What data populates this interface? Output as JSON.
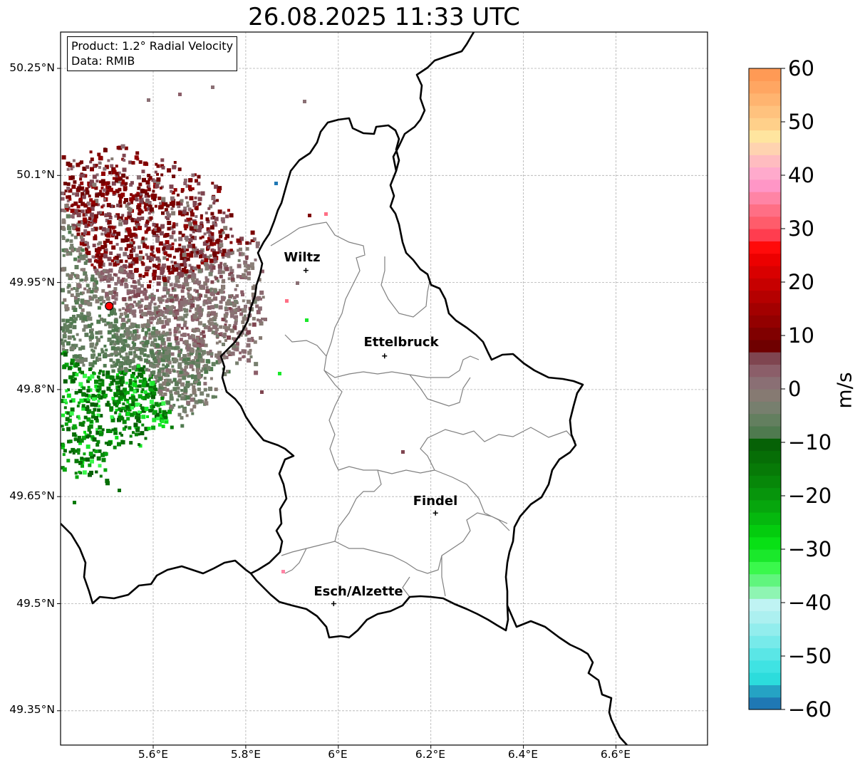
{
  "title": "26.08.2025 11:33 UTC",
  "info": {
    "product": "Product: 1.2° Radial Velocity",
    "data_source": "Data: RMIB"
  },
  "latitude_labels": [
    "50.25°N",
    "50.1°N",
    "49.95°N",
    "49.8°N",
    "49.65°N",
    "49.5°N",
    "49.35°N"
  ],
  "longitude_labels": [
    "5.6°E",
    "5.8°E",
    "6°E",
    "6.2°E",
    "6.4°E",
    "6.6°E"
  ],
  "cities": [
    {
      "name": "Wiltz",
      "lon": 5.93,
      "lat": 49.967
    },
    {
      "name": "Ettelbruck",
      "lon": 6.1,
      "lat": 49.847
    },
    {
      "name": "Findel",
      "lon": 6.21,
      "lat": 49.627
    },
    {
      "name": "Esch/Alzette",
      "lon": 5.99,
      "lat": 49.5
    }
  ],
  "radar": {
    "lon": 5.505,
    "lat": 49.917
  },
  "colorbar": {
    "unit": "m/s",
    "ticks": [
      "60",
      "50",
      "40",
      "30",
      "20",
      "10",
      "0",
      "−10",
      "−20",
      "−30",
      "−40",
      "−50",
      "−60"
    ],
    "min": -60,
    "max": 60,
    "colors": [
      "#1f78b4",
      "#25a3c4",
      "#2cdcdc",
      "#3fe3e3",
      "#5ae6e6",
      "#77eaea",
      "#92eded",
      "#acf0f0",
      "#bff3f3",
      "#8ef5b2",
      "#60f57d",
      "#3af84c",
      "#1ae82b",
      "#08e015",
      "#04cc0e",
      "#05b80e",
      "#06a60d",
      "#07950c",
      "#078709",
      "#077a07",
      "#066e06",
      "#066106",
      "#4f7a4f",
      "#637f5f",
      "#777f6e",
      "#867a72",
      "#8a6f74",
      "#8b5e69",
      "#7f4550",
      "#6f0000",
      "#800000",
      "#930000",
      "#a30000",
      "#b50000",
      "#c70000",
      "#d90000",
      "#ec0000",
      "#ff0a0a",
      "#ff3d4f",
      "#ff5c6b",
      "#ff6f85",
      "#ff84a5",
      "#ff96c6",
      "#ffaacc",
      "#ffbcc0",
      "#ffd3b0",
      "#ffe59f",
      "#ffd08a",
      "#ffc27e",
      "#ffb470",
      "#ffa662",
      "#ff9a55"
    ]
  }
}
